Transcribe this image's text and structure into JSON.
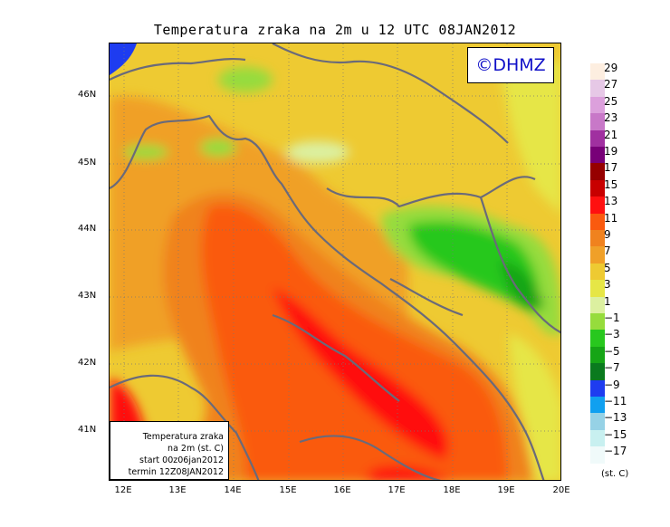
{
  "title": "Temperatura zraka na 2m u 12 UTC 08JAN2012",
  "logo_text": "©DHMZ",
  "info_box": {
    "line1": "Temperatura zraka",
    "line2": "na 2m (st. C)",
    "line3": "start 00z06jan2012",
    "line4": "termin 12Z08JAN2012"
  },
  "lat_ticks": [
    "46N",
    "45N",
    "44N",
    "43N",
    "42N",
    "41N"
  ],
  "lon_ticks": [
    "12E",
    "13E",
    "14E",
    "15E",
    "16E",
    "17E",
    "18E",
    "19E",
    "20E"
  ],
  "legend": {
    "units": "(st. C)",
    "labels": [
      "29",
      "27",
      "25",
      "23",
      "21",
      "19",
      "17",
      "15",
      "13",
      "11",
      "9",
      "7",
      "5",
      "3",
      "1",
      "−1",
      "−3",
      "−5",
      "−7",
      "−9",
      "−11",
      "−13",
      "−15",
      "−17"
    ],
    "colors": [
      "#fdeee0",
      "#e6c8e6",
      "#dca0dc",
      "#c878c8",
      "#a030a0",
      "#780078",
      "#960000",
      "#c80000",
      "#ff1010",
      "#fa5a0f",
      "#f0821e",
      "#f0a028",
      "#eeca32",
      "#e6e646",
      "#dcf0a0",
      "#96dc3c",
      "#28c81e",
      "#16a516",
      "#0a7a1e",
      "#1e3cf0",
      "#10a0f0",
      "#96d2e6",
      "#c8f0f0",
      "#f0fafa"
    ]
  }
}
